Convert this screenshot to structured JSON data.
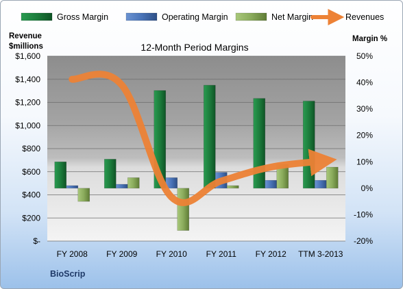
{
  "chart_data": {
    "type": "bar",
    "title": "12-Month Period Margins",
    "company": "BioScrip",
    "left_axis_label": [
      "Revenue",
      "$millions"
    ],
    "right_axis_label": "Margin %",
    "categories": [
      "FY 2008",
      "FY 2009",
      "FY 2010",
      "FY 2011",
      "FY 2012",
      "TTM 3-2013"
    ],
    "left_ticks": [
      "$-",
      "$200",
      "$400",
      "$600",
      "$800",
      "$1,000",
      "$1,200",
      "$1,400",
      "$1,600"
    ],
    "right_ticks": [
      "-20%",
      "-10%",
      "0%",
      "10%",
      "20%",
      "30%",
      "40%",
      "50%"
    ],
    "ylim_left": [
      0,
      1600
    ],
    "ylim_right": [
      -20,
      50
    ],
    "legend_position": "top",
    "series": [
      {
        "name": "Gross Margin",
        "axis": "right",
        "kind": "bar",
        "color": "#1f8040",
        "values": [
          10,
          11,
          37,
          39,
          34,
          33
        ]
      },
      {
        "name": "Operating Margin",
        "axis": "right",
        "kind": "bar",
        "color": "#4f7ac0",
        "values": [
          1,
          1.5,
          4,
          6,
          3,
          3
        ]
      },
      {
        "name": "Net Margin",
        "axis": "right",
        "kind": "bar",
        "color": "#8fb062",
        "values": [
          -5,
          4,
          -16,
          1,
          9,
          8
        ]
      },
      {
        "name": "Revenues",
        "axis": "left",
        "kind": "line",
        "color": "#ed8236",
        "values": [
          1400,
          1350,
          380,
          520,
          640,
          690
        ]
      }
    ]
  }
}
